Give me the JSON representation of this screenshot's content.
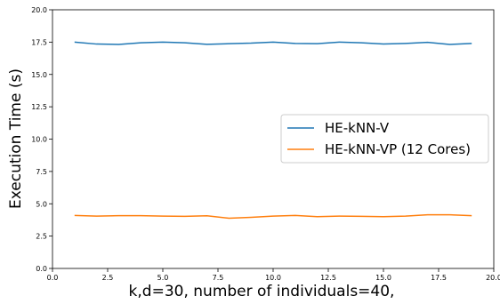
{
  "chart_data": {
    "type": "line",
    "title": "",
    "xlabel": "k,d=30, number of individuals=40,",
    "ylabel": "Execution Time (s)",
    "xlim": [
      0,
      20
    ],
    "ylim": [
      0,
      20
    ],
    "xticks": [
      "0.0",
      "2.5",
      "5.0",
      "7.5",
      "10.0",
      "12.5",
      "15.0",
      "17.5",
      "20.0"
    ],
    "yticks": [
      "0.0",
      "2.5",
      "5.0",
      "7.5",
      "10.0",
      "12.5",
      "15.0",
      "17.5",
      "20.0"
    ],
    "grid": false,
    "legend_position": "center-right",
    "x": [
      1,
      2,
      3,
      4,
      5,
      6,
      7,
      8,
      9,
      10,
      11,
      12,
      13,
      14,
      15,
      16,
      17,
      18,
      19
    ],
    "series": [
      {
        "name": "HE-kNN-V",
        "color": "#1f77b4",
        "values": [
          17.5,
          17.35,
          17.32,
          17.45,
          17.5,
          17.45,
          17.33,
          17.38,
          17.42,
          17.5,
          17.4,
          17.38,
          17.5,
          17.45,
          17.35,
          17.4,
          17.48,
          17.32,
          17.4
        ]
      },
      {
        "name": "HE-kNN-VP (12 Cores)",
        "color": "#ff7f0e",
        "values": [
          4.1,
          4.05,
          4.08,
          4.08,
          4.05,
          4.03,
          4.07,
          3.88,
          3.95,
          4.05,
          4.1,
          4.0,
          4.05,
          4.03,
          4.0,
          4.05,
          4.15,
          4.15,
          4.08
        ]
      }
    ]
  }
}
